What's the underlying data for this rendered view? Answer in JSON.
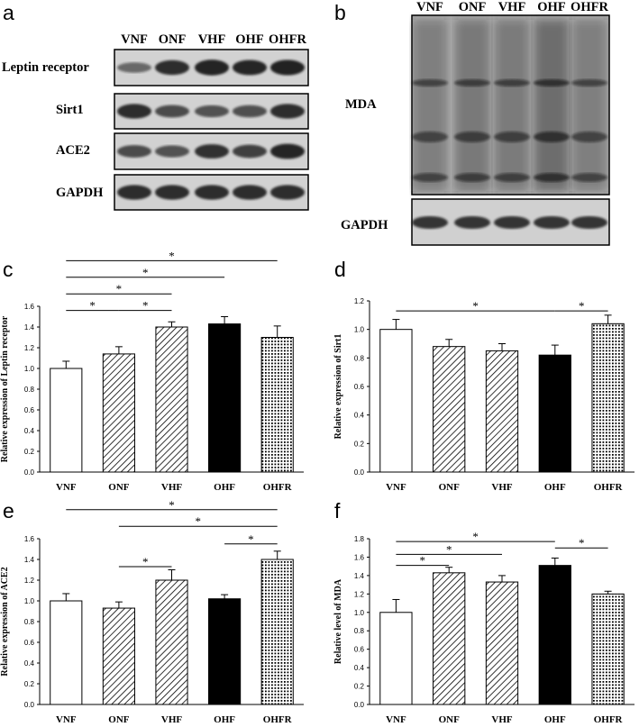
{
  "panels": {
    "a": {
      "label": "a",
      "lanes": [
        "VNF",
        "ONF",
        "VHF",
        "OHF",
        "OHFR"
      ],
      "rows": [
        {
          "label": "Leptin receptor",
          "intensity": [
            0.45,
            0.85,
            0.95,
            0.9,
            0.92
          ]
        },
        {
          "label": "Sirt1",
          "intensity": [
            0.85,
            0.65,
            0.6,
            0.62,
            0.85
          ]
        },
        {
          "label": "ACE2",
          "intensity": [
            0.65,
            0.6,
            0.82,
            0.72,
            0.9
          ]
        },
        {
          "label": "GAPDH",
          "intensity": [
            0.85,
            0.85,
            0.85,
            0.85,
            0.85
          ]
        }
      ]
    },
    "b": {
      "label": "b",
      "lanes": [
        "VNF",
        "ONF",
        "VHF",
        "OHF",
        "OHFR"
      ],
      "rows": [
        {
          "label": "MDA"
        },
        {
          "label": "GAPDH"
        }
      ]
    }
  },
  "chart_data": [
    {
      "panel": "c",
      "type": "bar",
      "categories": [
        "VNF",
        "ONF",
        "VHF",
        "OHF",
        "OHFR"
      ],
      "values": [
        1.0,
        1.14,
        1.4,
        1.43,
        1.3
      ],
      "errors": [
        0.07,
        0.07,
        0.05,
        0.07,
        0.11
      ],
      "patterns": [
        "white",
        "diag",
        "diag",
        "black",
        "dots"
      ],
      "ylabel": "Relative expression of Leptin receptor",
      "ylim": [
        0,
        1.6
      ],
      "yticks": [
        "0.0",
        "0.2",
        "0.4",
        "0.6",
        "0.8",
        "1.0",
        "1.2",
        "1.4",
        "1.6"
      ],
      "brackets": [
        {
          "from": 0,
          "to": 1,
          "level": 1.56,
          "mark": "*"
        },
        {
          "from": 1,
          "to": 2,
          "level": 1.56,
          "mark": "*"
        },
        {
          "from": 0,
          "to": 2,
          "level": 1.72,
          "mark": "*"
        },
        {
          "from": 0,
          "to": 3,
          "level": 1.88,
          "mark": "*"
        },
        {
          "from": 0,
          "to": 4,
          "level": 2.04,
          "mark": "*"
        }
      ]
    },
    {
      "panel": "d",
      "type": "bar",
      "categories": [
        "VNF",
        "ONF",
        "VHF",
        "OHF",
        "OHFR"
      ],
      "values": [
        1.0,
        0.88,
        0.85,
        0.82,
        1.04
      ],
      "errors": [
        0.07,
        0.05,
        0.05,
        0.07,
        0.06
      ],
      "patterns": [
        "white",
        "diag",
        "diag",
        "black",
        "dots"
      ],
      "ylabel": "Relative expression of Sirt1",
      "ylim": [
        0,
        1.2
      ],
      "yticks": [
        "0.0",
        "0.2",
        "0.4",
        "0.6",
        "0.8",
        "1.0",
        "1.2"
      ],
      "brackets": [
        {
          "from": 0,
          "to": 3,
          "level": 1.13,
          "mark": "*"
        },
        {
          "from": 3,
          "to": 4,
          "level": 1.13,
          "mark": "*"
        }
      ]
    },
    {
      "panel": "e",
      "type": "bar",
      "categories": [
        "VNF",
        "ONF",
        "VHF",
        "OHF",
        "OHFR"
      ],
      "values": [
        1.0,
        0.93,
        1.2,
        1.02,
        1.4
      ],
      "errors": [
        0.07,
        0.06,
        0.1,
        0.04,
        0.08
      ],
      "patterns": [
        "white",
        "diag",
        "diag",
        "black",
        "dots"
      ],
      "ylabel": "Relative expression of ACE2",
      "ylim": [
        0,
        1.6
      ],
      "yticks": [
        "0.0",
        "0.2",
        "0.4",
        "0.6",
        "0.8",
        "1.0",
        "1.2",
        "1.4",
        "1.6"
      ],
      "brackets": [
        {
          "from": 1,
          "to": 2,
          "level": 1.33,
          "mark": "*"
        },
        {
          "from": 3,
          "to": 4,
          "level": 1.55,
          "mark": "*"
        },
        {
          "from": 1,
          "to": 4,
          "level": 1.72,
          "mark": "*"
        },
        {
          "from": 0,
          "to": 4,
          "level": 1.88,
          "mark": "*"
        }
      ]
    },
    {
      "panel": "f",
      "type": "bar",
      "categories": [
        "VNF",
        "ONF",
        "VHF",
        "OHF",
        "OHFR"
      ],
      "values": [
        1.0,
        1.43,
        1.33,
        1.51,
        1.2
      ],
      "errors": [
        0.14,
        0.06,
        0.07,
        0.08,
        0.03
      ],
      "patterns": [
        "white",
        "diag",
        "diag",
        "black",
        "dots"
      ],
      "ylabel": "Relative level of MDA",
      "ylim": [
        0,
        1.8
      ],
      "yticks": [
        "0.0",
        "0.2",
        "0.4",
        "0.6",
        "0.8",
        "1.0",
        "1.2",
        "1.4",
        "1.6",
        "1.8"
      ],
      "brackets": [
        {
          "from": 0,
          "to": 1,
          "level": 1.51,
          "mark": "*"
        },
        {
          "from": 0,
          "to": 2,
          "level": 1.63,
          "mark": "*"
        },
        {
          "from": 0,
          "to": 3,
          "level": 1.77,
          "mark": "*"
        },
        {
          "from": 3,
          "to": 4,
          "level": 1.7,
          "mark": "*"
        }
      ]
    }
  ]
}
